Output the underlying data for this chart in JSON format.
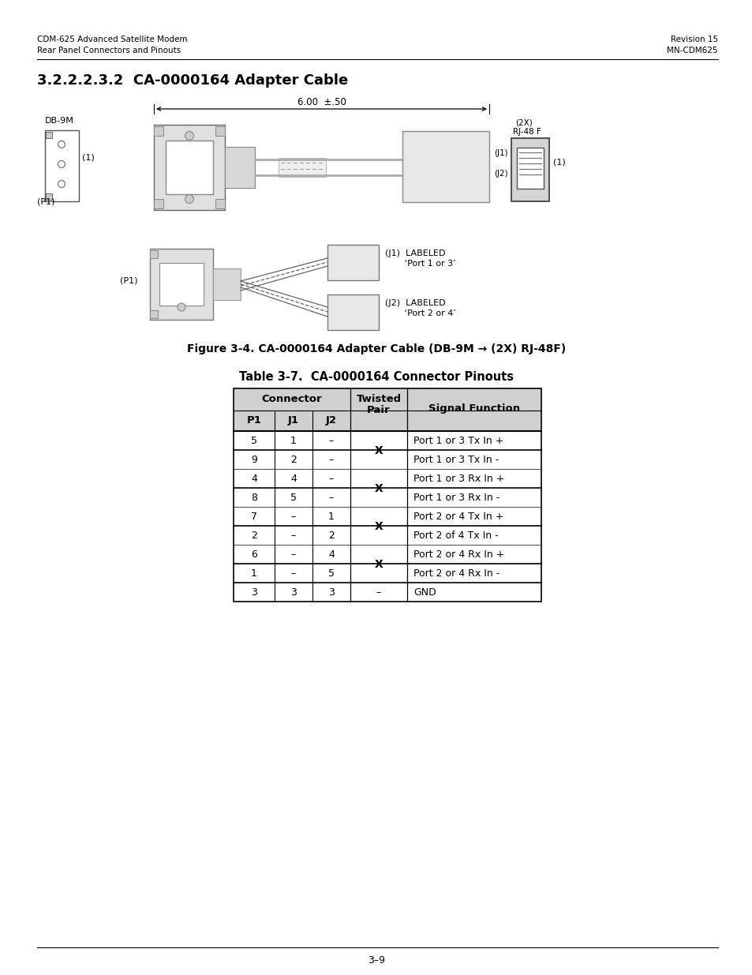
{
  "page_title_left_line1": "CDM-625 Advanced Satellite Modem",
  "page_title_left_line2": "Rear Panel Connectors and Pinouts",
  "page_title_right_line1": "Revision 15",
  "page_title_right_line2": "MN-CDM625",
  "section_title": "3.2.2.2.3.2  CA-0000164 Adapter Cable",
  "figure_caption": "Figure 3-4. CA-0000164 Adapter Cable (DB-9M → (2X) RJ-48F)",
  "table_title": "Table 3-7.  CA-0000164 Connector Pinouts",
  "table_data": [
    [
      "5",
      "1",
      "–",
      "X",
      "Port 1 or 3 Tx In +"
    ],
    [
      "9",
      "2",
      "–",
      "",
      "Port 1 or 3 Tx In -"
    ],
    [
      "4",
      "4",
      "–",
      "X",
      "Port 1 or 3 Rx In +"
    ],
    [
      "8",
      "5",
      "–",
      "",
      "Port 1 or 3 Rx In -"
    ],
    [
      "7",
      "–",
      "1",
      "X",
      "Port 2 or 4 Tx In +"
    ],
    [
      "2",
      "–",
      "2",
      "",
      "Port 2 of 4 Tx In -"
    ],
    [
      "6",
      "–",
      "4",
      "X",
      "Port 2 or 4 Rx In +"
    ],
    [
      "1",
      "–",
      "5",
      "",
      "Port 2 or 4 Rx In -"
    ],
    [
      "3",
      "3",
      "3",
      "–",
      "GND"
    ]
  ],
  "page_number": "3–9",
  "bg_color": "#ffffff",
  "text_color": "#000000",
  "line_color": "#888888",
  "header_bg": "#d0d0d0",
  "table_border": "#000000"
}
